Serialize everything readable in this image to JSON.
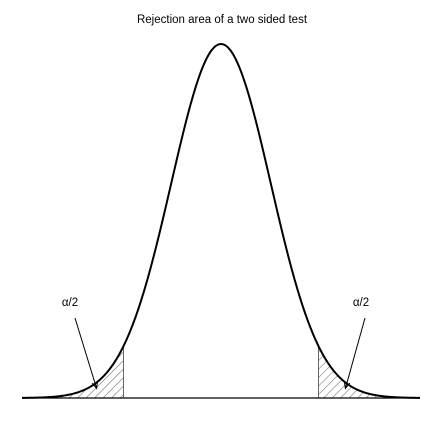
{
  "chart_data": {
    "type": "area",
    "title": "Rejection area of a two sided test",
    "xlabel": "",
    "ylabel": "",
    "xlim": [
      -4.0,
      4.0
    ],
    "ylim": [
      0,
      0.4
    ],
    "grid": false,
    "legend": "none",
    "series": [
      {
        "values": "standard normal density",
        "x": [
          -4.0,
          -3.5,
          -3.0,
          -2.5,
          -2.0,
          -1.5,
          -1.0,
          -0.5,
          0.0,
          0.5,
          1.0,
          1.5,
          2.0,
          2.5,
          3.0,
          3.5,
          4.0
        ],
        "y": [
          0.0001,
          0.0009,
          0.0044,
          0.0175,
          0.054,
          0.1295,
          0.242,
          0.3521,
          0.3989,
          0.3521,
          0.242,
          0.1295,
          0.054,
          0.0175,
          0.0044,
          0.0009,
          0.0001
        ]
      }
    ],
    "critical_values": [
      -1.96,
      1.96
    ],
    "shaded_regions": [
      {
        "from": -4.0,
        "to": -1.96,
        "label": "α/2"
      },
      {
        "from": 1.96,
        "to": 4.0,
        "label": "α/2"
      }
    ],
    "annotations": [
      {
        "text": "α/2",
        "points_to_x": -2.5
      },
      {
        "text": "α/2",
        "points_to_x": 2.5
      }
    ],
    "colors": {
      "curve": "#000000",
      "hatch": "#555555",
      "axis": "#000000"
    }
  }
}
